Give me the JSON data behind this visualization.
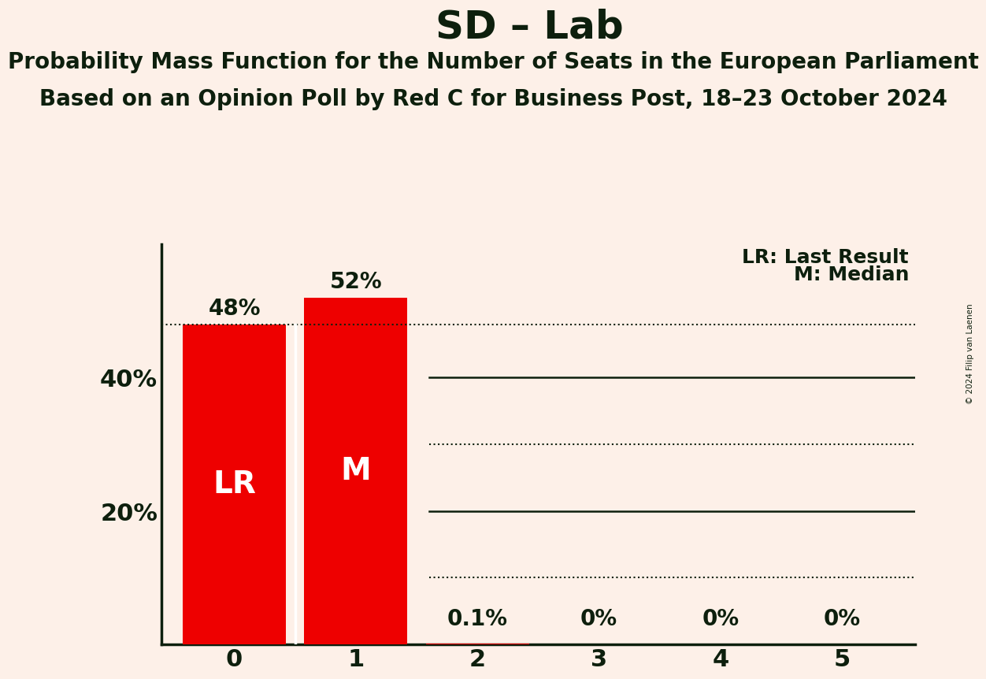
{
  "title": "SD – Lab",
  "subtitle1": "Probability Mass Function for the Number of Seats in the European Parliament",
  "subtitle2": "Based on an Opinion Poll by Red C for Business Post, 18–23 October 2024",
  "copyright": "© 2024 Filip van Laenen",
  "categories": [
    0,
    1,
    2,
    3,
    4,
    5
  ],
  "values": [
    0.48,
    0.52,
    0.001,
    0.0,
    0.0,
    0.0
  ],
  "bar_labels": [
    "48%",
    "52%",
    "0.1%",
    "0%",
    "0%",
    "0%"
  ],
  "bar_color": "#ee0000",
  "background_color": "#fdf0e8",
  "text_color": "#0d1f0d",
  "lr_seat": 0,
  "median_seat": 1,
  "ylim": [
    0,
    0.6
  ],
  "legend_lr": "LR: Last Result",
  "legend_m": "M: Median",
  "bar_label_fontsize": 20,
  "title_fontsize": 36,
  "subtitle_fontsize": 20,
  "tick_fontsize": 22,
  "legend_fontsize": 18,
  "dotted_line_y": 0.48,
  "grid_solid": [
    0.4,
    0.2
  ],
  "grid_dotted": [
    0.3,
    0.1
  ],
  "hline_xstart": 1.6
}
